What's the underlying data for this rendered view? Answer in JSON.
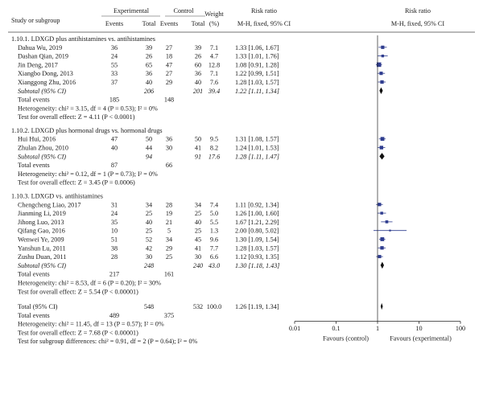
{
  "header": {
    "study_label": "Study or subgroup",
    "experimental_label": "Experimental",
    "control_label": "Control",
    "events_label": "Events",
    "total_label": "Total",
    "weight_label": "Weight",
    "weight_unit": "(%)",
    "rr_label": "Risk ratio",
    "rr_method": "M-H, fixed, 95% CI",
    "plot_label": "Risk ratio",
    "plot_method": "M-H, fixed, 95% CI"
  },
  "subgroups": [
    {
      "title": "1.10.1. LDXGD plus antihistamines vs. antihistamines",
      "studies": [
        {
          "name": "Dahua Wu, 2019",
          "e_ev": "36",
          "e_tot": "39",
          "c_ev": "27",
          "c_tot": "39",
          "weight": "7.1",
          "ci_text": "1.33 [1.06, 1.67]"
        },
        {
          "name": "Dashan Qian, 2019",
          "e_ev": "24",
          "e_tot": "26",
          "c_ev": "18",
          "c_tot": "26",
          "weight": "4.7",
          "ci_text": "1.33 [1.01, 1.76]"
        },
        {
          "name": "Jin Deng, 2017",
          "e_ev": "55",
          "e_tot": "65",
          "c_ev": "47",
          "c_tot": "60",
          "weight": "12.8",
          "ci_text": "1.08 [0.91, 1.28]"
        },
        {
          "name": "Xiangbo Dong, 2013",
          "e_ev": "33",
          "e_tot": "36",
          "c_ev": "27",
          "c_tot": "36",
          "weight": "7.1",
          "ci_text": "1.22 [0.99, 1.51]"
        },
        {
          "name": "Xianggong Zhu, 2016",
          "e_ev": "37",
          "e_tot": "40",
          "c_ev": "29",
          "c_tot": "40",
          "weight": "7.6",
          "ci_text": "1.28 [1.03, 1.57]"
        }
      ],
      "subtotal": {
        "label": "Subtotal (95% CI)",
        "e_tot": "206",
        "c_tot": "201",
        "weight": "39.4",
        "ci_text": "1.22 [1.11, 1.34]"
      },
      "total_events": {
        "label": "Total events",
        "e": "185",
        "c": "148"
      },
      "heterogeneity": "Heterogeneity: chi² = 3.15, df = 4 (P = 0.53); I² = 0%",
      "overall_test": "Test for overall effect: Z = 4.11 (P < 0.0001)"
    },
    {
      "title": "1.10.2. LDXGD plus hormonal drugs vs. hormonal drugs",
      "studies": [
        {
          "name": "Hui Hui, 2016",
          "e_ev": "47",
          "e_tot": "50",
          "c_ev": "36",
          "c_tot": "50",
          "weight": "9.5",
          "ci_text": "1.31 [1.08, 1.57]"
        },
        {
          "name": "Zhulan Zhou, 2010",
          "e_ev": "40",
          "e_tot": "44",
          "c_ev": "30",
          "c_tot": "41",
          "weight": "8.2",
          "ci_text": "1.24 [1.01, 1.53]"
        }
      ],
      "subtotal": {
        "label": "Subtotal (95% CI)",
        "e_tot": "94",
        "c_tot": "91",
        "weight": "17.6",
        "ci_text": "1.28 [1.11, 1.47]"
      },
      "total_events": {
        "label": "Total events",
        "e": "87",
        "c": "66"
      },
      "heterogeneity": "Heterogeneity: chi² = 0.12, df = 1 (P = 0.73); I² = 0%",
      "overall_test": "Test for overall effect: Z = 3.45 (P = 0.0006)"
    },
    {
      "title": "1.10.3. LDXGD vs. antihistamines",
      "studies": [
        {
          "name": "Chengcheng Liao, 2017",
          "e_ev": "31",
          "e_tot": "34",
          "c_ev": "28",
          "c_tot": "34",
          "weight": "7.4",
          "ci_text": "1.11 [0.92, 1.34]"
        },
        {
          "name": "Jianming Li, 2019",
          "e_ev": "24",
          "e_tot": "25",
          "c_ev": "19",
          "c_tot": "25",
          "weight": "5.0",
          "ci_text": "1.26 [1.00, 1.60]"
        },
        {
          "name": "Jihong Luo, 2013",
          "e_ev": "35",
          "e_tot": "40",
          "c_ev": "21",
          "c_tot": "40",
          "weight": "5.5",
          "ci_text": "1.67 [1.21, 2.29]"
        },
        {
          "name": "Qifang Gao, 2016",
          "e_ev": "10",
          "e_tot": "25",
          "c_ev": "5",
          "c_tot": "25",
          "weight": "1.3",
          "ci_text": "2.00 [0.80, 5.02]"
        },
        {
          "name": "Wenwei Ye, 2009",
          "e_ev": "51",
          "e_tot": "52",
          "c_ev": "34",
          "c_tot": "45",
          "weight": "9.6",
          "ci_text": "1.30 [1.09, 1.54]"
        },
        {
          "name": "Yanshun Lu, 2011",
          "e_ev": "38",
          "e_tot": "42",
          "c_ev": "29",
          "c_tot": "41",
          "weight": "7.7",
          "ci_text": "1.28 [1.03, 1.57]"
        },
        {
          "name": "Zushu Duan, 2011",
          "e_ev": "28",
          "e_tot": "30",
          "c_ev": "25",
          "c_tot": "30",
          "weight": "6.6",
          "ci_text": "1.12 [0.93, 1.35]"
        }
      ],
      "subtotal": {
        "label": "Subtotal (95% CI)",
        "e_tot": "248",
        "c_tot": "240",
        "weight": "43.0",
        "ci_text": "1.30 [1.18, 1.43]"
      },
      "total_events": {
        "label": "Total events",
        "e": "217",
        "c": "161"
      },
      "heterogeneity": "Heterogeneity: chi² = 8.53, df = 6 (P = 0.20); I² = 30%",
      "overall_test": "Test for overall effect: Z = 5.54 (P < 0.00001)"
    }
  ],
  "overall": {
    "label": "Total (95% CI)",
    "e_tot": "548",
    "c_tot": "532",
    "weight": "100.0",
    "ci_text": "1.26 [1.19, 1.34]",
    "events_label": "Total events",
    "e_ev": "489",
    "c_ev": "375",
    "heterogeneity": "Heterogeneity: chi² = 11.45, df = 13 (P = 0.57); I² = 0%",
    "overall_test": "Test for overall effect: Z = 7.68 (P < 0.00001)",
    "subgroup_test": "Test for subgroup differences: chi² = 0.91, df = 2 (P = 0.64); I² = 0%"
  },
  "axis": {
    "ticks": [
      "0.01",
      "0.1",
      "1",
      "10",
      "100"
    ],
    "favours_left": "Favours (control)",
    "favours_right": "Favours (experimental)"
  },
  "colors": {
    "study_marker": "#2f3d8f",
    "diamond": "#111111",
    "text": "#1a1a1a",
    "rule": "#444444"
  },
  "chart_data": {
    "type": "forest",
    "scale": "log",
    "xlim": [
      0.01,
      100
    ],
    "xticks": [
      0.01,
      0.1,
      1,
      10,
      100
    ],
    "reference_line": 1,
    "points": [
      {
        "study": "Dahua Wu, 2019",
        "rr": 1.33,
        "lo": 1.06,
        "hi": 1.67,
        "weight": 7.1
      },
      {
        "study": "Dashan Qian, 2019",
        "rr": 1.33,
        "lo": 1.01,
        "hi": 1.76,
        "weight": 4.7
      },
      {
        "study": "Jin Deng, 2017",
        "rr": 1.08,
        "lo": 0.91,
        "hi": 1.28,
        "weight": 12.8
      },
      {
        "study": "Xiangbo Dong, 2013",
        "rr": 1.22,
        "lo": 0.99,
        "hi": 1.51,
        "weight": 7.1
      },
      {
        "study": "Xianggong Zhu, 2016",
        "rr": 1.28,
        "lo": 1.03,
        "hi": 1.57,
        "weight": 7.6
      },
      {
        "study": "Subtotal 1.10.1",
        "rr": 1.22,
        "lo": 1.11,
        "hi": 1.34,
        "weight": 39.4,
        "diamond": true
      },
      {
        "study": "Hui Hui, 2016",
        "rr": 1.31,
        "lo": 1.08,
        "hi": 1.57,
        "weight": 9.5
      },
      {
        "study": "Zhulan Zhou, 2010",
        "rr": 1.24,
        "lo": 1.01,
        "hi": 1.53,
        "weight": 8.2
      },
      {
        "study": "Subtotal 1.10.2",
        "rr": 1.28,
        "lo": 1.11,
        "hi": 1.47,
        "weight": 17.6,
        "diamond": true
      },
      {
        "study": "Chengcheng Liao, 2017",
        "rr": 1.11,
        "lo": 0.92,
        "hi": 1.34,
        "weight": 7.4
      },
      {
        "study": "Jianming Li, 2019",
        "rr": 1.26,
        "lo": 1.0,
        "hi": 1.6,
        "weight": 5.0
      },
      {
        "study": "Jihong Luo, 2013",
        "rr": 1.67,
        "lo": 1.21,
        "hi": 2.29,
        "weight": 5.5
      },
      {
        "study": "Qifang Gao, 2016",
        "rr": 2.0,
        "lo": 0.8,
        "hi": 5.02,
        "weight": 1.3
      },
      {
        "study": "Wenwei Ye, 2009",
        "rr": 1.3,
        "lo": 1.09,
        "hi": 1.54,
        "weight": 9.6
      },
      {
        "study": "Yanshun Lu, 2011",
        "rr": 1.28,
        "lo": 1.03,
        "hi": 1.57,
        "weight": 7.7
      },
      {
        "study": "Zushu Duan, 2011",
        "rr": 1.12,
        "lo": 0.93,
        "hi": 1.35,
        "weight": 6.6
      },
      {
        "study": "Subtotal 1.10.3",
        "rr": 1.3,
        "lo": 1.18,
        "hi": 1.43,
        "weight": 43.0,
        "diamond": true
      },
      {
        "study": "Total (95% CI)",
        "rr": 1.26,
        "lo": 1.19,
        "hi": 1.34,
        "weight": 100.0,
        "diamond": true
      }
    ]
  }
}
